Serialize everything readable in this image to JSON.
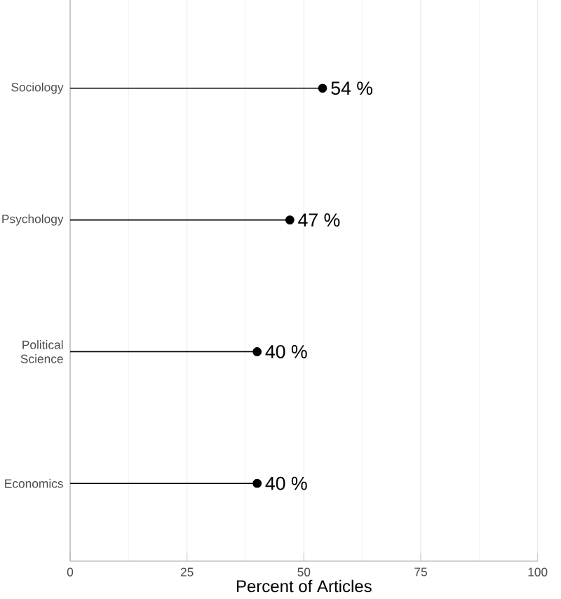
{
  "chart_data": {
    "type": "lollipop",
    "orientation": "horizontal",
    "xlabel": "Percent of Articles",
    "categories": [
      "Sociology",
      "Psychology",
      "Political Science",
      "Economics"
    ],
    "values": [
      54,
      47,
      40,
      40
    ],
    "value_labels": [
      "54 %",
      "47 %",
      "40 %",
      "40 %"
    ],
    "color": "#000000",
    "xlim": [
      0,
      100
    ],
    "xticks": [
      0,
      25,
      50,
      75,
      100
    ],
    "grid": "x",
    "marker": "circle"
  }
}
